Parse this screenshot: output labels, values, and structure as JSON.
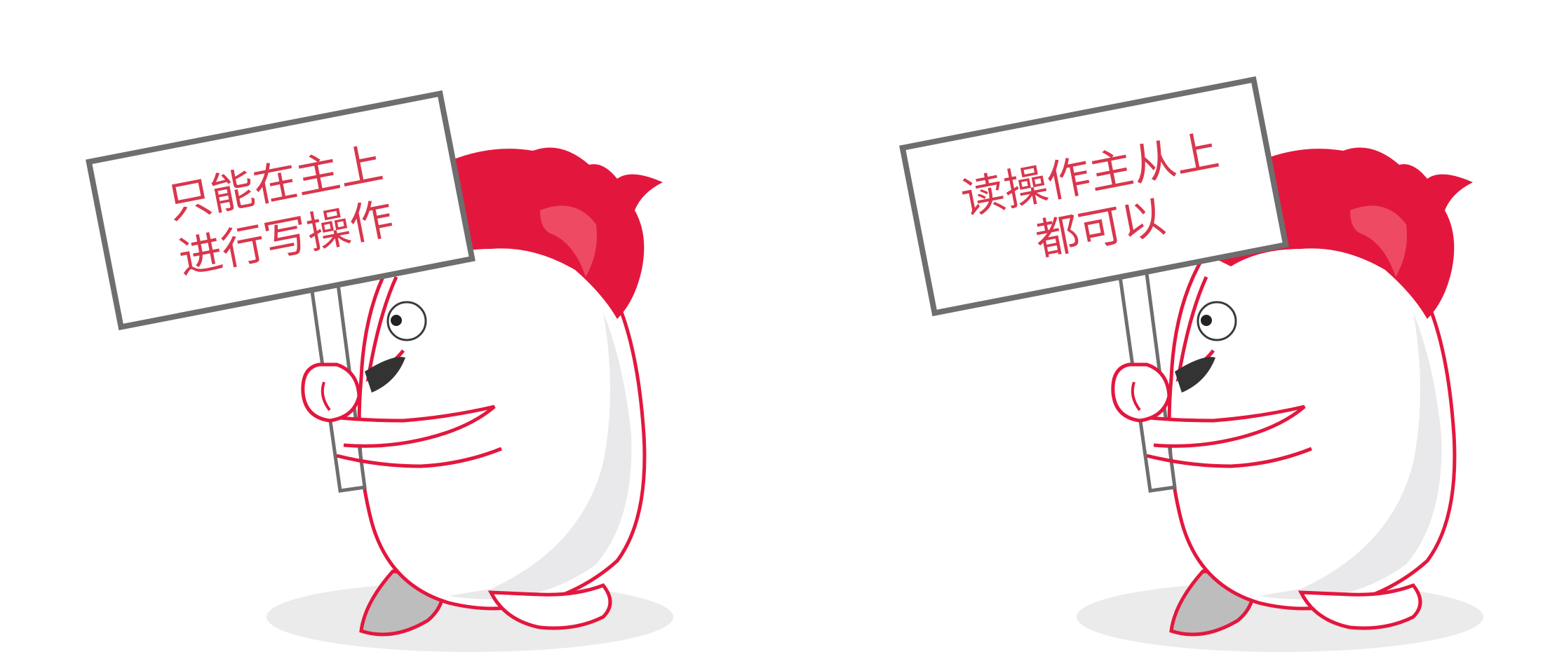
{
  "colors": {
    "mascot_red": "#e3173e",
    "mascot_red_highlight": "#ef4a64",
    "sign_border": "#6e6e6e",
    "sign_text": "#d9364d",
    "body_outline": "#e3173e",
    "body_fill": "#ffffff",
    "body_shade": "#e9e9eb",
    "ground_shadow": "#ebebeb"
  },
  "scenes": [
    {
      "name": "left-mascot",
      "sign_lines": [
        "只能在主上",
        "进行写操作"
      ]
    },
    {
      "name": "right-mascot",
      "sign_lines": [
        "读操作主从上",
        "都可以"
      ]
    }
  ]
}
